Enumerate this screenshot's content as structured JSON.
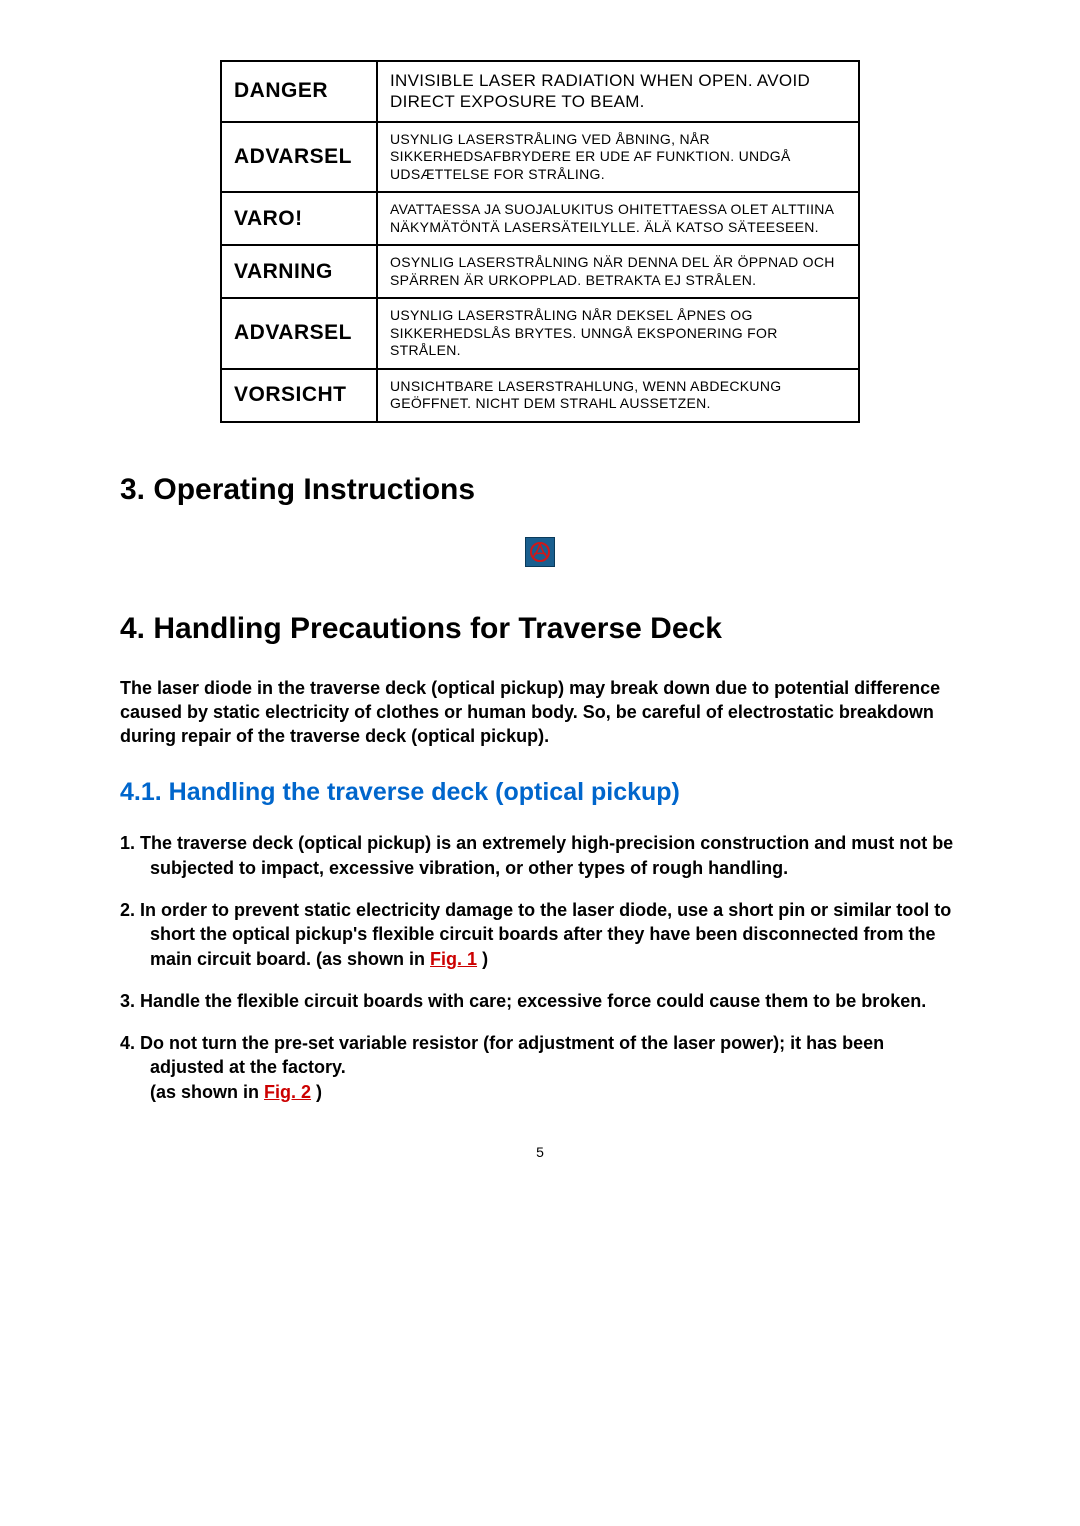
{
  "warnings": [
    {
      "label": "DANGER",
      "desc": "INVISIBLE LASER RADIATION WHEN OPEN.\nAVOID DIRECT EXPOSURE TO BEAM.",
      "big": true
    },
    {
      "label": "ADVARSEL",
      "desc": "USYNLIG LASERSTRÅLING VED ÅBNING, NÅR SIKKERHEDSAFBRYDERE ER UDE AF FUNKTION. UNDGÅ UDSÆTTELSE FOR STRÅLING."
    },
    {
      "label": "VARO!",
      "desc": "AVATTAESSA JA SUOJALUKITUS OHITETTAESSA OLET ALTTIINA NÄKYMÄTÖNTÄ LASERSÄTEILYLLE. ÄLÄ KATSO SÄTEESEEN."
    },
    {
      "label": "VARNING",
      "desc": "OSYNLIG LASERSTRÅLNING NÄR DENNA DEL ÄR ÖPPNAD OCH SPÄRREN ÄR URKOPPLAD. BETRAKTA EJ STRÅLEN."
    },
    {
      "label": "ADVARSEL",
      "desc": "USYNLIG LASERSTRÅLING NÅR DEKSEL ÅPNES OG SIKKERHEDSLÅS BRYTES. UNNGÅ EKSPONERING FOR STRÅLEN."
    },
    {
      "label": "VORSICHT",
      "desc": "UNSICHTBARE LASERSTRAHLUNG, WENN ABDECKUNG GEÖFFNET. NICHT DEM STRAHL AUSSETZEN."
    }
  ],
  "section3_title": "3. Operating Instructions",
  "section4_title": "4. Handling Precautions for Traverse Deck",
  "section4_intro": "The laser diode in the traverse deck (optical pickup) may break down due to potential difference caused by static electricity of clothes or human body. So, be careful of electrostatic breakdown during repair of the traverse deck (optical pickup).",
  "subsection41_title": "4.1. Handling the traverse deck (optical pickup)",
  "items": [
    {
      "num": "1.",
      "text": "The traverse deck (optical pickup) is an extremely high-precision construction and must not be subjected to impact, excessive vibration, or other types of rough handling."
    },
    {
      "num": "2.",
      "pre": "In order to prevent static electricity damage to the laser diode, use a short pin or similar tool to short the optical pickup's flexible circuit boards after they have been disconnected from the main circuit board. (as shown in ",
      "fig": "Fig. 1",
      "post": " )"
    },
    {
      "num": "3.",
      "text": "Handle the flexible circuit boards with care; excessive force could cause them to be broken."
    },
    {
      "num": "4.",
      "pre": "Do not turn the pre-set variable resistor (for adjustment of the laser power); it has been adjusted at the factory.\n(as shown in ",
      "fig": "Fig. 2",
      "post": " )"
    }
  ],
  "pagenum": "5",
  "colors": {
    "link_blue": "#0066cc",
    "fig_red": "#cc0000"
  }
}
